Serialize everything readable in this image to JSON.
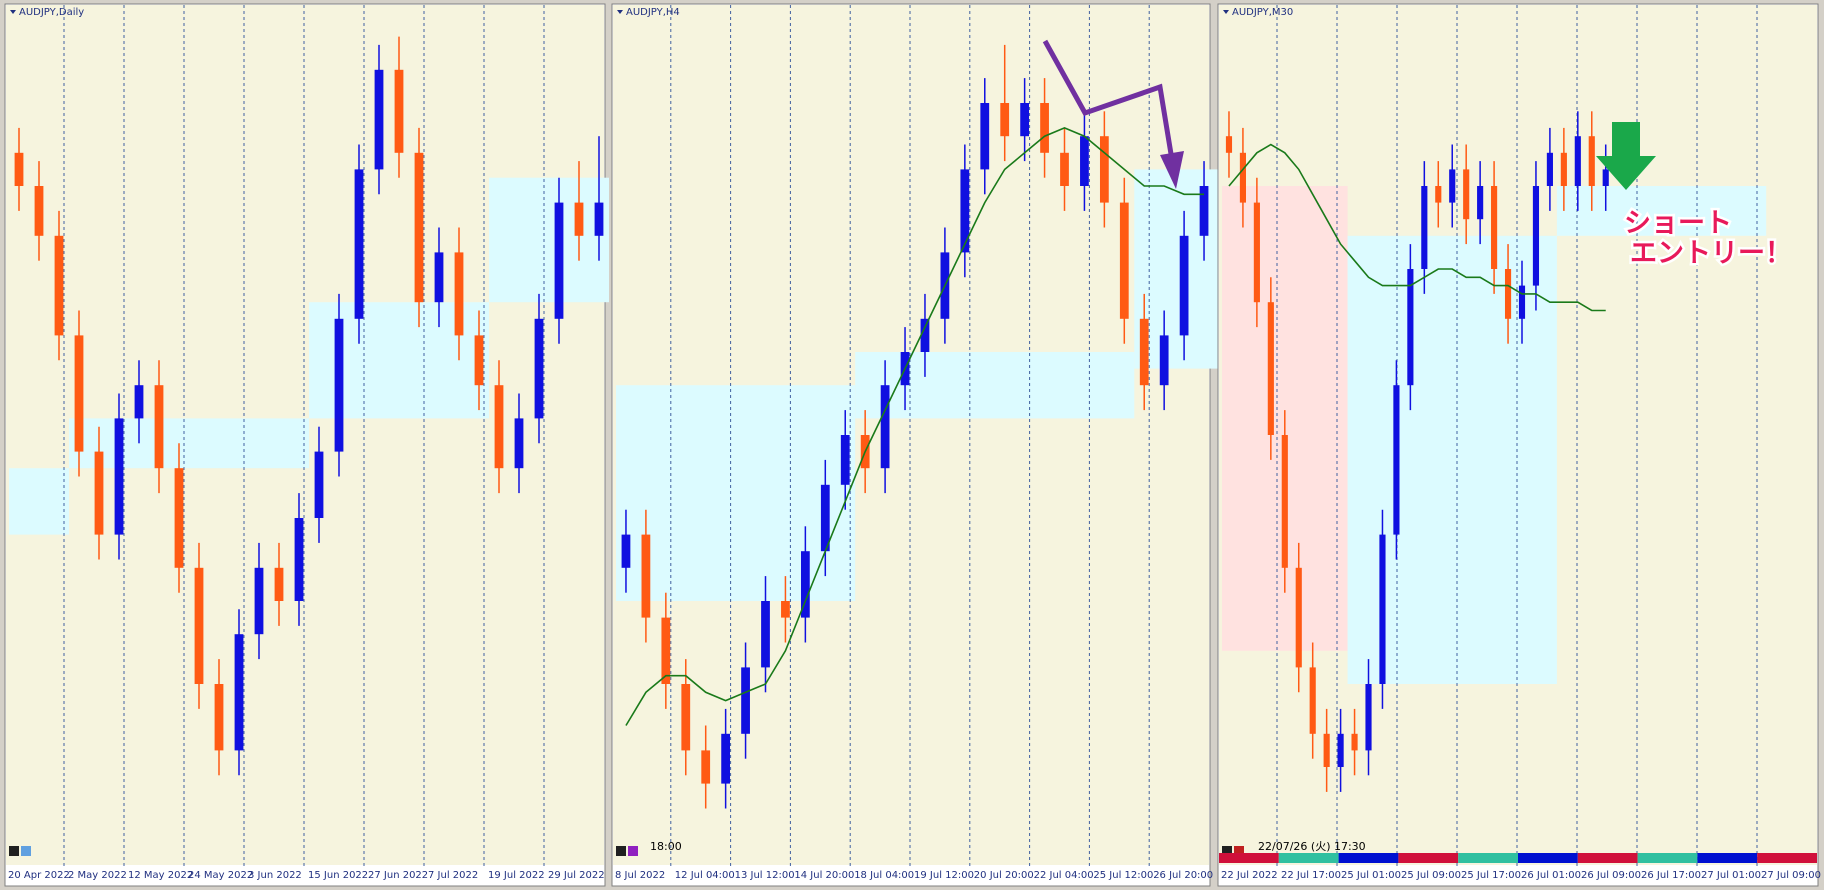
{
  "chart_data": [
    {
      "type": "candlestick",
      "title": "AUDJPY,Daily",
      "xlabels": [
        "20 Apr 2022",
        "2 May 2022",
        "12 May 2022",
        "24 May 2022",
        "3 Jun 2022",
        "15 Jun 2022",
        "27 Jun 2022",
        "7 Jul 2022",
        "19 Jul 2022",
        "29 Jul 2022"
      ],
      "ylim": [
        0,
        100
      ],
      "bull_color": "#1010e0",
      "bear_color": "#ff5a14",
      "open": [
        84,
        80,
        74,
        62,
        48,
        38,
        52,
        56,
        46,
        34,
        20,
        12,
        26,
        34,
        30,
        40,
        48,
        64,
        82,
        94,
        84,
        66,
        72,
        62,
        56,
        46,
        52,
        64,
        78,
        74
      ],
      "high": [
        87,
        83,
        77,
        65,
        51,
        55,
        59,
        59,
        49,
        37,
        23,
        29,
        37,
        37,
        43,
        51,
        67,
        85,
        97,
        98,
        87,
        75,
        75,
        65,
        59,
        55,
        67,
        81,
        83,
        86
      ],
      "low": [
        77,
        71,
        59,
        45,
        35,
        35,
        49,
        43,
        31,
        17,
        9,
        9,
        23,
        27,
        27,
        37,
        45,
        61,
        79,
        81,
        63,
        63,
        59,
        53,
        43,
        43,
        49,
        61,
        71,
        71
      ],
      "close": [
        80,
        74,
        62,
        48,
        38,
        52,
        56,
        46,
        34,
        20,
        12,
        26,
        34,
        30,
        40,
        48,
        64,
        82,
        94,
        84,
        66,
        72,
        62,
        56,
        46,
        52,
        64,
        78,
        74,
        78
      ],
      "zones": [
        {
          "x": [
            0,
            3
          ],
          "y": [
            38,
            46
          ],
          "color": "#dcfbff"
        },
        {
          "x": [
            3,
            15
          ],
          "y": [
            46,
            52
          ],
          "color": "#dcfbff"
        },
        {
          "x": [
            15,
            24
          ],
          "y": [
            52,
            66
          ],
          "color": "#dcfbff"
        },
        {
          "x": [
            24,
            30
          ],
          "y": [
            66,
            81
          ],
          "color": "#dcfbff"
        }
      ]
    },
    {
      "type": "candlestick",
      "title": "AUDJPY,H4",
      "time_label": "18:00",
      "xlabels": [
        "8 Jul 2022",
        "12 Jul 04:00",
        "13 Jul 12:00",
        "14 Jul 20:00",
        "18 Jul 04:00",
        "19 Jul 12:00",
        "20 Jul 20:00",
        "22 Jul 04:00",
        "25 Jul 12:00",
        "26 Jul 20:00"
      ],
      "ylim": [
        0,
        100
      ],
      "bull_color": "#1010e0",
      "bear_color": "#ff5a14",
      "ma_color": "#1a7a1a",
      "open": [
        34,
        38,
        28,
        20,
        12,
        8,
        14,
        22,
        30,
        28,
        36,
        44,
        50,
        46,
        56,
        60,
        64,
        72,
        82,
        90,
        86,
        90,
        84,
        80,
        86,
        78,
        64,
        56,
        62,
        74
      ],
      "high": [
        41,
        41,
        31,
        23,
        15,
        17,
        25,
        33,
        33,
        39,
        47,
        53,
        53,
        59,
        63,
        67,
        75,
        85,
        93,
        97,
        93,
        93,
        87,
        89,
        89,
        81,
        67,
        65,
        77,
        83
      ],
      "low": [
        31,
        25,
        17,
        9,
        5,
        5,
        11,
        19,
        25,
        25,
        33,
        41,
        43,
        43,
        53,
        57,
        61,
        69,
        79,
        83,
        83,
        81,
        77,
        77,
        75,
        61,
        53,
        53,
        59,
        71
      ],
      "close": [
        38,
        28,
        20,
        12,
        8,
        14,
        22,
        30,
        28,
        36,
        44,
        50,
        46,
        56,
        60,
        64,
        72,
        82,
        90,
        86,
        90,
        84,
        80,
        86,
        78,
        64,
        56,
        62,
        74,
        80
      ],
      "ma": [
        15,
        19,
        21,
        21,
        19,
        18,
        19,
        20,
        24,
        30,
        36,
        42,
        48,
        53,
        58,
        63,
        68,
        73,
        78,
        82,
        84,
        86,
        87,
        86,
        84,
        82,
        80,
        80,
        79,
        79
      ],
      "zones": [
        {
          "x": [
            0,
            12
          ],
          "y": [
            30,
            56
          ],
          "color": "#dcfbff"
        },
        {
          "x": [
            12,
            26
          ],
          "y": [
            52,
            60
          ],
          "color": "#dcfbff"
        },
        {
          "x": [
            26,
            34
          ],
          "y": [
            58,
            82
          ],
          "color": "#dcfbff"
        }
      ]
    },
    {
      "type": "candlestick",
      "title": "AUDJPY,M30",
      "time_label": "22/07/26 (火) 17:30",
      "annotation": [
        "ショート",
        "エントリー！"
      ],
      "xlabels": [
        "22 Jul 2022",
        "22 Jul 17:00",
        "25 Jul 01:00",
        "25 Jul 09:00",
        "25 Jul 17:00",
        "26 Jul 01:00",
        "26 Jul 09:00",
        "26 Jul 17:00",
        "27 Jul 01:00",
        "27 Jul 09:00"
      ],
      "ylim": [
        0,
        100
      ],
      "bull_color": "#1010e0",
      "bear_color": "#ff5a14",
      "ma_color": "#1a7a1a",
      "open": [
        86,
        84,
        78,
        66,
        50,
        34,
        22,
        14,
        10,
        14,
        12,
        20,
        38,
        56,
        70,
        80,
        78,
        82,
        76,
        80,
        70,
        64,
        68,
        80,
        84,
        80,
        86,
        80
      ],
      "high": [
        89,
        87,
        81,
        69,
        53,
        37,
        25,
        17,
        17,
        17,
        23,
        41,
        59,
        73,
        83,
        83,
        85,
        85,
        83,
        83,
        73,
        71,
        83,
        87,
        87,
        89,
        89,
        85
      ],
      "low": [
        81,
        75,
        63,
        47,
        31,
        19,
        11,
        7,
        7,
        9,
        9,
        17,
        35,
        53,
        67,
        75,
        75,
        73,
        73,
        67,
        61,
        61,
        65,
        77,
        77,
        77,
        77,
        77
      ],
      "close": [
        84,
        78,
        66,
        50,
        34,
        22,
        14,
        10,
        14,
        12,
        20,
        38,
        56,
        70,
        80,
        78,
        82,
        76,
        80,
        70,
        64,
        68,
        80,
        84,
        80,
        86,
        80,
        82
      ],
      "ma": [
        80,
        82,
        84,
        85,
        84,
        82,
        79,
        76,
        73,
        71,
        69,
        68,
        68,
        68,
        69,
        70,
        70,
        69,
        69,
        68,
        68,
        67,
        67,
        66,
        66,
        66,
        65,
        65
      ],
      "zones": [
        {
          "x": [
            0,
            9
          ],
          "y": [
            24,
            80
          ],
          "color": "#ffe2e0"
        },
        {
          "x": [
            9,
            24
          ],
          "y": [
            20,
            74
          ],
          "color": "#dcfbff"
        },
        {
          "x": [
            24,
            39
          ],
          "y": [
            74,
            80
          ],
          "color": "#dcfbff"
        }
      ]
    }
  ]
}
